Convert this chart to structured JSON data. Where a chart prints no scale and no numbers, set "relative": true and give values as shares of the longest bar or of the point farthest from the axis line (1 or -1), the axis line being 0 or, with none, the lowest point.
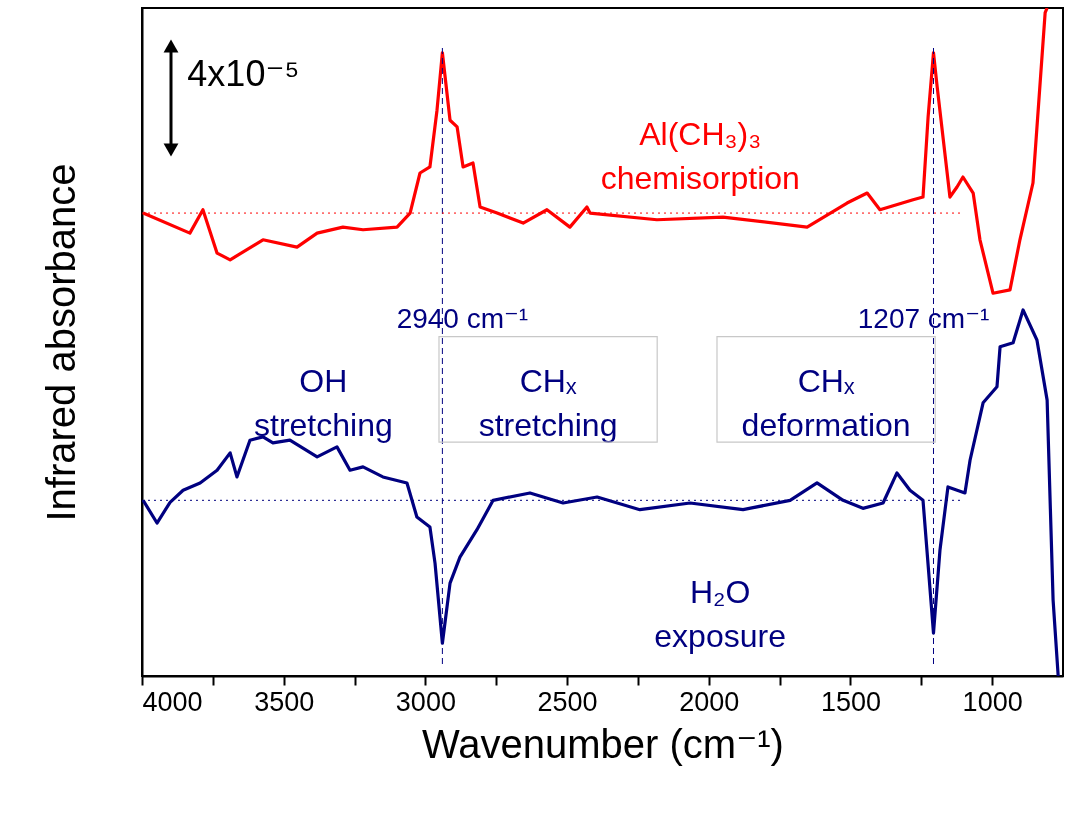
{
  "chart_data": {
    "type": "line",
    "relative": true,
    "xlabel": "Wavenumber (cm⁻¹)",
    "ylabel": "Infrared absorbance",
    "xlim": [
      4000,
      750
    ],
    "xticks": [
      4000,
      {
        "value": 3750,
        "label": null
      },
      3500,
      {
        "value": 3250,
        "label": null
      },
      3000,
      {
        "value": 2750,
        "label": null
      },
      2500,
      {
        "value": 2250,
        "label": null
      },
      2000,
      {
        "value": 1750,
        "label": null
      },
      1500,
      {
        "value": 1250,
        "label": null
      },
      1000
    ],
    "grid": false,
    "marker": "none",
    "line_style": "solid",
    "series": [
      {
        "color": "#ff0000",
        "x": [
          3996,
          3831,
          3785,
          3735,
          3689,
          3573,
          3453,
          3382,
          3291,
          3220,
          3100,
          3054,
          3019,
          2984,
          2959,
          2940,
          2913,
          2888,
          2867,
          2832,
          2807,
          2747,
          2655,
          2571,
          2490,
          2430,
          2419,
          2183,
          1950,
          1653,
          1512,
          1441,
          1396,
          1279,
          1244,
          1226,
          1207,
          1194,
          1149,
          1124,
          1103,
          1067,
          1043,
          997,
          937,
          902,
          856,
          813,
          806
        ],
        "values": [
          0.693,
          0.663,
          0.698,
          0.633,
          0.623,
          0.653,
          0.642,
          0.663,
          0.672,
          0.668,
          0.672,
          0.693,
          0.753,
          0.762,
          0.847,
          0.933,
          0.832,
          0.822,
          0.762,
          0.768,
          0.702,
          0.693,
          0.678,
          0.698,
          0.672,
          0.702,
          0.693,
          0.683,
          0.687,
          0.672,
          0.708,
          0.723,
          0.698,
          0.713,
          0.717,
          0.837,
          0.933,
          0.882,
          0.717,
          0.732,
          0.747,
          0.723,
          0.653,
          0.573,
          0.578,
          0.653,
          0.738,
          0.993,
          1.0
        ]
      },
      {
        "color": "#000080",
        "x": [
          3996,
          3947,
          3901,
          3855,
          3795,
          3735,
          3689,
          3665,
          3619,
          3573,
          3538,
          3478,
          3382,
          3312,
          3266,
          3220,
          3150,
          3065,
          3030,
          2984,
          2966,
          2940,
          2913,
          2878,
          2818,
          2761,
          2631,
          2514,
          2394,
          2243,
          2066,
          1879,
          1713,
          1618,
          1526,
          1456,
          1385,
          1336,
          1290,
          1244,
          1207,
          1184,
          1156,
          1096,
          1078,
          1032,
          983,
          972,
          926,
          891,
          842,
          806,
          785,
          767
        ],
        "values": [
          0.263,
          0.229,
          0.26,
          0.278,
          0.289,
          0.308,
          0.334,
          0.298,
          0.353,
          0.358,
          0.349,
          0.353,
          0.328,
          0.343,
          0.308,
          0.313,
          0.298,
          0.289,
          0.238,
          0.223,
          0.169,
          0.049,
          0.139,
          0.178,
          0.219,
          0.263,
          0.274,
          0.259,
          0.268,
          0.249,
          0.259,
          0.249,
          0.263,
          0.289,
          0.263,
          0.251,
          0.259,
          0.304,
          0.278,
          0.263,
          0.064,
          0.189,
          0.283,
          0.274,
          0.323,
          0.409,
          0.433,
          0.493,
          0.499,
          0.548,
          0.503,
          0.413,
          0.114,
          0.0
        ]
      }
    ],
    "ref_lines": [
      {
        "axis": "x",
        "value": 2940,
        "label": "2940 cm⁻¹",
        "color": "#000080",
        "line_style": "dashed"
      },
      {
        "axis": "x",
        "value": 1207,
        "label": "1207 cm⁻¹",
        "color": "#000080",
        "line_style": "dashed"
      },
      {
        "axis": "y",
        "value": 0.693,
        "color": "#ff0000",
        "line_style": "dotted"
      },
      {
        "axis": "y",
        "value": 0.263,
        "color": "#000080",
        "line_style": "dotted"
      }
    ],
    "annotations": [
      "4x10⁻⁵",
      "Al(CH₃)₃\nchemisorption",
      "OH\nstretching",
      "CHₓ\nstretching",
      "CHₓ\ndeformation",
      "H₂O\nexposure"
    ]
  }
}
